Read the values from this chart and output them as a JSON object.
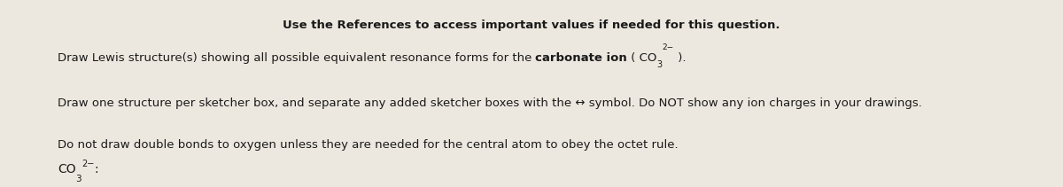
{
  "bg_color": "#ede8df",
  "title_text": "Use the References to access important values if needed for this question.",
  "line1_part1": "Draw Lewis structure(s) showing all possible equivalent resonance forms for the ",
  "line1_bold": "carbonate ion",
  "line1_formula1": " ( CO",
  "line1_sub": "3",
  "line1_sup": "2−",
  "line1_end": " ).",
  "line2": "Draw one structure per sketcher box, and separate any added sketcher boxes with the ↔ symbol. Do NOT show any ion charges in your drawings.",
  "line3": "Do not draw double bonds to oxygen unless they are needed for the central atom to obey the octet rule.",
  "bot_co": "CO",
  "bot_sub": "3",
  "bot_sup": "2−",
  "bot_colon": ":",
  "text_color": "#1a1a1a",
  "fs_title": 9.5,
  "fs_body": 9.5,
  "fs_formula": 9.5,
  "fs_sub": 7.0,
  "fs_sup": 6.5
}
